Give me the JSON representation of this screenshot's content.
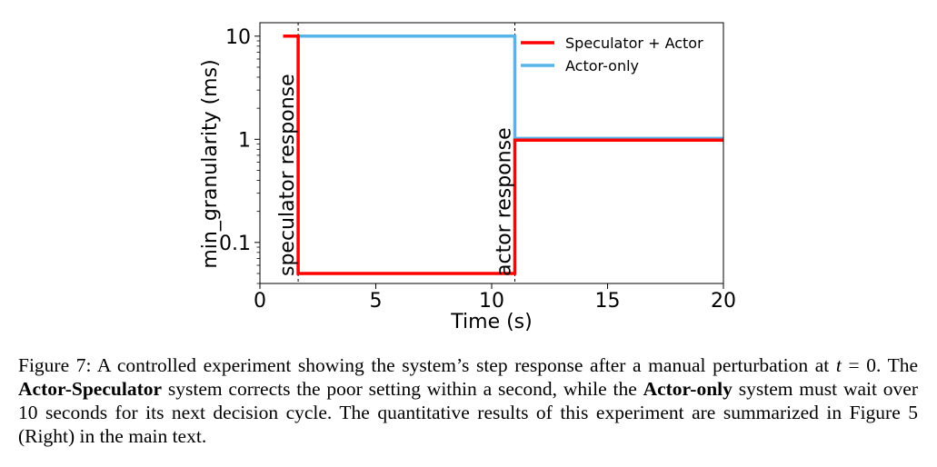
{
  "chart_data": {
    "type": "line",
    "title": "",
    "xlabel": "Time (s)",
    "ylabel": "min_granularity (ms)",
    "xlim": [
      0,
      20
    ],
    "ylim": [
      0.04,
      13.5
    ],
    "yscale": "log",
    "xticks": [
      0,
      5,
      10,
      15,
      20
    ],
    "yticks": [
      {
        "value": 0.1,
        "label": "0.1"
      },
      {
        "value": 1,
        "label": "1"
      },
      {
        "value": 10,
        "label": "10"
      }
    ],
    "grid": false,
    "legend": "top-right",
    "series": [
      {
        "name": "Speculator + Actor",
        "color": "#ff0000",
        "points": [
          [
            1.0,
            10
          ],
          [
            1.65,
            10
          ],
          [
            1.65,
            0.05
          ],
          [
            11.0,
            0.05
          ],
          [
            11.0,
            0.98
          ],
          [
            20,
            0.98
          ]
        ]
      },
      {
        "name": "Actor-only",
        "color": "#56b4e9",
        "points": [
          [
            1.0,
            10
          ],
          [
            11.0,
            10
          ],
          [
            11.0,
            1.02
          ],
          [
            20,
            1.02
          ]
        ]
      }
    ],
    "annotations": [
      {
        "x": 1.65,
        "text": "speculator response"
      },
      {
        "x": 11.0,
        "text": "actor response"
      }
    ]
  },
  "caption": {
    "prefix": "Figure 7: A controlled experiment showing the system’s step response after a manual perturbation at ",
    "t_var": "t",
    "t_rest": " = 0. The ",
    "bold1": "Actor-Speculator",
    "mid1": " system corrects the poor setting within a second, while the ",
    "bold2": "Actor-only",
    "suffix": " system must wait over 10 seconds for its next decision cycle. The quantitative results of this experiment are summarized in Figure 5 (Right) in the main text."
  }
}
